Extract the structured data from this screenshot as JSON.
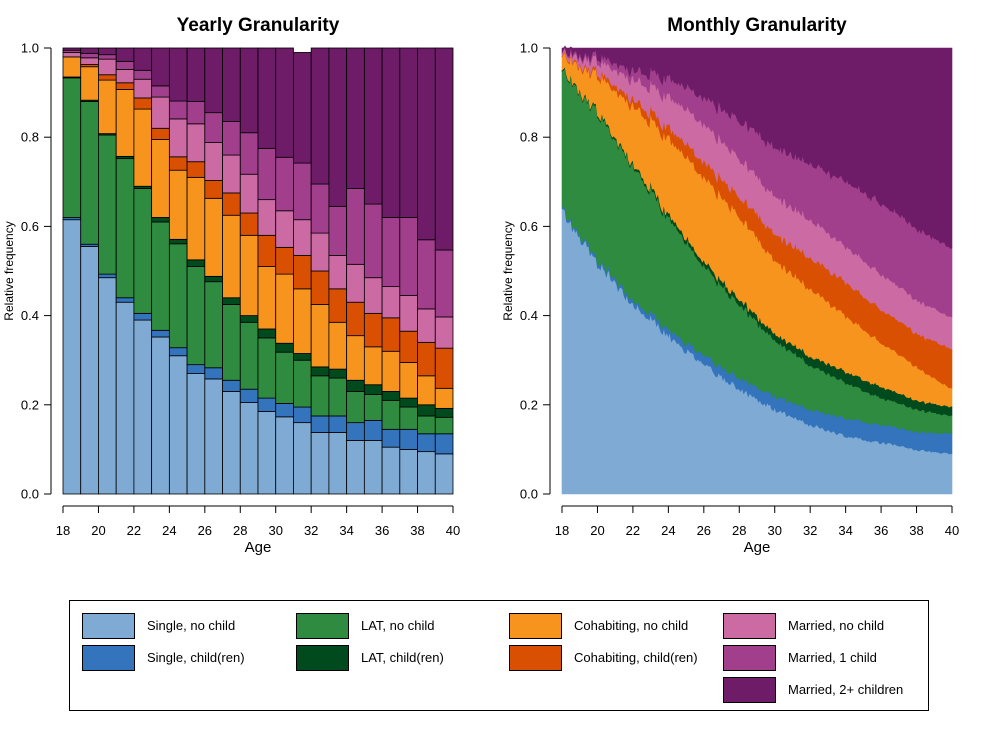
{
  "chart_data": [
    {
      "type": "bar",
      "stacked": true,
      "title": "Yearly Granularity",
      "xlabel": "Age",
      "ylabel": "Relative frequency",
      "xlim": [
        18,
        40
      ],
      "ylim": [
        0,
        1
      ],
      "x_ticks": [
        "18",
        "20",
        "22",
        "24",
        "26",
        "28",
        "30",
        "32",
        "34",
        "36",
        "38",
        "40"
      ],
      "y_ticks": [
        "0.0",
        "0.2",
        "0.4",
        "0.6",
        "0.8",
        "1.0"
      ],
      "categories": [
        18,
        19,
        20,
        21,
        22,
        23,
        24,
        25,
        26,
        27,
        28,
        29,
        30,
        31,
        32,
        33,
        34,
        35,
        36,
        37,
        38,
        39
      ],
      "series": [
        {
          "name": "Single, no child",
          "values": [
            0.615,
            0.555,
            0.485,
            0.43,
            0.39,
            0.352,
            0.31,
            0.27,
            0.258,
            0.23,
            0.205,
            0.185,
            0.173,
            0.16,
            0.138,
            0.138,
            0.12,
            0.12,
            0.105,
            0.1,
            0.095,
            0.09
          ]
        },
        {
          "name": "Single, child(ren)",
          "values": [
            0.005,
            0.005,
            0.008,
            0.01,
            0.015,
            0.015,
            0.018,
            0.02,
            0.025,
            0.025,
            0.03,
            0.03,
            0.03,
            0.035,
            0.037,
            0.037,
            0.04,
            0.045,
            0.04,
            0.045,
            0.04,
            0.045
          ]
        },
        {
          "name": "LAT, no child",
          "values": [
            0.313,
            0.32,
            0.312,
            0.312,
            0.28,
            0.243,
            0.233,
            0.22,
            0.193,
            0.17,
            0.15,
            0.135,
            0.115,
            0.105,
            0.09,
            0.085,
            0.07,
            0.058,
            0.065,
            0.05,
            0.04,
            0.037
          ]
        },
        {
          "name": "LAT, child(ren)",
          "values": [
            0.002,
            0.003,
            0.003,
            0.005,
            0.005,
            0.01,
            0.01,
            0.015,
            0.012,
            0.015,
            0.015,
            0.02,
            0.02,
            0.015,
            0.02,
            0.02,
            0.025,
            0.022,
            0.02,
            0.02,
            0.025,
            0.02
          ]
        },
        {
          "name": "Cohabiting, no child",
          "values": [
            0.045,
            0.075,
            0.12,
            0.15,
            0.173,
            0.175,
            0.155,
            0.185,
            0.175,
            0.185,
            0.18,
            0.14,
            0.155,
            0.145,
            0.14,
            0.105,
            0.1,
            0.085,
            0.09,
            0.08,
            0.065,
            0.045
          ]
        },
        {
          "name": "Cohabiting, child(ren)",
          "values": [
            0.0,
            0.005,
            0.012,
            0.015,
            0.025,
            0.025,
            0.03,
            0.035,
            0.04,
            0.05,
            0.05,
            0.07,
            0.06,
            0.075,
            0.075,
            0.075,
            0.075,
            0.075,
            0.075,
            0.07,
            0.075,
            0.09
          ]
        },
        {
          "name": "Married, no child",
          "values": [
            0.01,
            0.015,
            0.035,
            0.03,
            0.042,
            0.07,
            0.085,
            0.085,
            0.085,
            0.085,
            0.087,
            0.08,
            0.082,
            0.08,
            0.085,
            0.075,
            0.085,
            0.08,
            0.07,
            0.08,
            0.075,
            0.07
          ]
        },
        {
          "name": "Married, 1 child",
          "values": [
            0.005,
            0.01,
            0.01,
            0.018,
            0.02,
            0.025,
            0.04,
            0.05,
            0.067,
            0.075,
            0.093,
            0.115,
            0.12,
            0.127,
            0.11,
            0.11,
            0.17,
            0.165,
            0.155,
            0.175,
            0.155,
            0.15
          ]
        },
        {
          "name": "Married, 2+ children",
          "values": [
            0.005,
            0.012,
            0.015,
            0.03,
            0.05,
            0.085,
            0.119,
            0.12,
            0.145,
            0.165,
            0.19,
            0.225,
            0.245,
            0.248,
            0.305,
            0.355,
            0.315,
            0.35,
            0.38,
            0.38,
            0.43,
            0.453
          ]
        }
      ]
    },
    {
      "type": "area",
      "stacked": true,
      "title": "Monthly Granularity",
      "xlabel": "Age",
      "ylabel": "Relative frequency",
      "xlim": [
        18,
        40
      ],
      "ylim": [
        0,
        1
      ],
      "x_ticks": [
        "18",
        "20",
        "22",
        "24",
        "26",
        "28",
        "30",
        "32",
        "34",
        "36",
        "38",
        "40"
      ],
      "y_ticks": [
        "0.0",
        "0.2",
        "0.4",
        "0.6",
        "0.8",
        "1.0"
      ],
      "x": [
        18,
        20,
        22,
        24,
        26,
        28,
        30,
        32,
        34,
        36,
        38,
        40
      ],
      "series": [
        {
          "name": "Single, no child",
          "values": [
            0.64,
            0.52,
            0.43,
            0.355,
            0.29,
            0.235,
            0.19,
            0.155,
            0.13,
            0.115,
            0.1,
            0.09
          ]
        },
        {
          "name": "Single, child(ren)",
          "values": [
            0.005,
            0.008,
            0.01,
            0.015,
            0.02,
            0.025,
            0.03,
            0.035,
            0.04,
            0.04,
            0.04,
            0.045
          ]
        },
        {
          "name": "LAT, no child",
          "values": [
            0.31,
            0.33,
            0.3,
            0.25,
            0.2,
            0.165,
            0.125,
            0.1,
            0.08,
            0.06,
            0.05,
            0.04
          ]
        },
        {
          "name": "LAT, child(ren)",
          "values": [
            0.003,
            0.004,
            0.005,
            0.008,
            0.01,
            0.012,
            0.015,
            0.02,
            0.025,
            0.025,
            0.02,
            0.02
          ]
        },
        {
          "name": "Cohabiting, no child",
          "values": [
            0.03,
            0.08,
            0.13,
            0.17,
            0.19,
            0.185,
            0.165,
            0.15,
            0.125,
            0.1,
            0.075,
            0.04
          ]
        },
        {
          "name": "Cohabiting, child(ren)",
          "values": [
            0.002,
            0.008,
            0.015,
            0.025,
            0.035,
            0.045,
            0.06,
            0.07,
            0.075,
            0.075,
            0.075,
            0.09
          ]
        },
        {
          "name": "Married, no child",
          "values": [
            0.005,
            0.025,
            0.045,
            0.07,
            0.085,
            0.085,
            0.085,
            0.085,
            0.08,
            0.08,
            0.075,
            0.07
          ]
        },
        {
          "name": "Married, 1 child",
          "values": [
            0.003,
            0.01,
            0.02,
            0.04,
            0.06,
            0.085,
            0.11,
            0.125,
            0.145,
            0.16,
            0.16,
            0.155
          ]
        },
        {
          "name": "Married, 2+ children",
          "values": [
            0.002,
            0.015,
            0.045,
            0.067,
            0.11,
            0.163,
            0.22,
            0.26,
            0.3,
            0.345,
            0.405,
            0.45
          ]
        }
      ]
    }
  ],
  "colors": [
    "#7faad3",
    "#3374bc",
    "#2e8b3f",
    "#004a1d",
    "#f7941d",
    "#d95002",
    "#cc6aa4",
    "#a13f8c",
    "#6e1c68"
  ],
  "legend": [
    {
      "label": "Single, no child",
      "color": "#7faad3"
    },
    {
      "label": "Single, child(ren)",
      "color": "#3374bc"
    },
    {
      "label": "LAT, no child",
      "color": "#2e8b3f"
    },
    {
      "label": "LAT, child(ren)",
      "color": "#004a1d"
    },
    {
      "label": "Cohabiting, no child",
      "color": "#f7941d"
    },
    {
      "label": "Cohabiting, child(ren)",
      "color": "#d95002"
    },
    {
      "label": "Married, no child",
      "color": "#cc6aa4"
    },
    {
      "label": "Married, 1 child",
      "color": "#a13f8c"
    },
    {
      "label": "Married, 2+ children",
      "color": "#6e1c68"
    }
  ]
}
